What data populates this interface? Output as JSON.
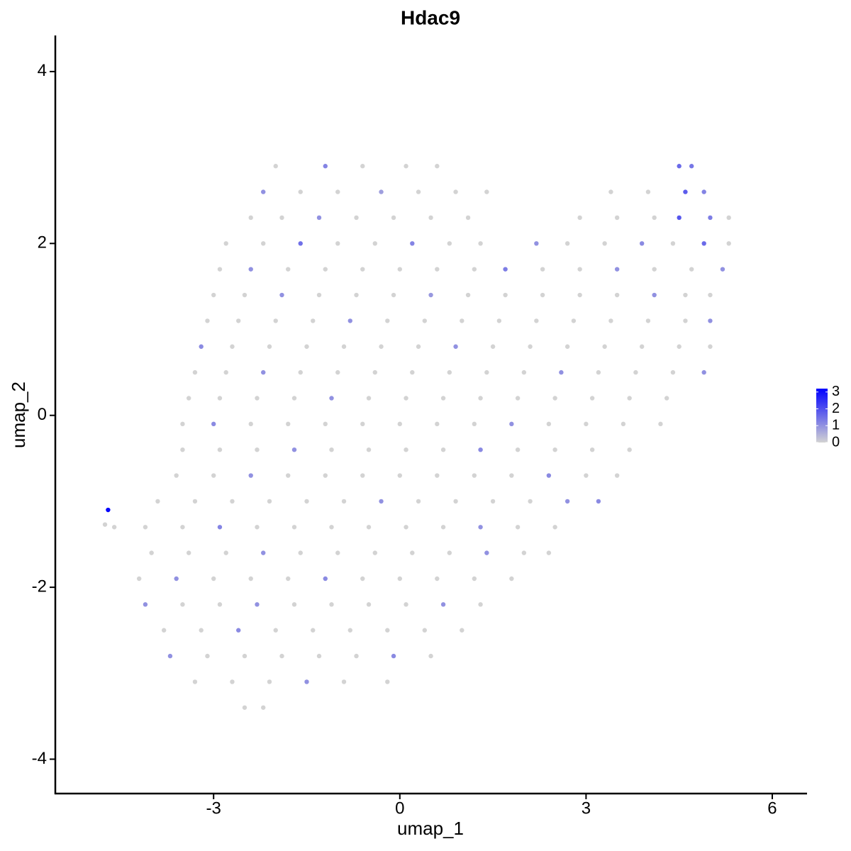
{
  "chart_data": {
    "type": "scatter",
    "title": "Hdac9",
    "x_label": "umap_1",
    "y_label": "umap_2",
    "xlim": [
      -5.55,
      6.56
    ],
    "xticks": [
      -3,
      0,
      3,
      6
    ],
    "ylim": [
      -4.4,
      4.42
    ],
    "yticks": [
      -4,
      -2,
      0,
      2,
      4
    ],
    "grid": false,
    "color_scale": {
      "low": "#d3d3d3",
      "high": "#0000ff",
      "lim": [
        0,
        3.2
      ],
      "ticks": [
        0,
        1,
        2,
        3
      ]
    },
    "x": [
      -2.0,
      -1.2,
      -0.6,
      0.1,
      0.6,
      4.5,
      4.7,
      -2.2,
      -1.6,
      -1.0,
      -0.3,
      0.3,
      0.9,
      1.4,
      3.4,
      4.0,
      4.6,
      4.9,
      -2.4,
      -1.9,
      -1.3,
      -0.7,
      -0.1,
      0.5,
      1.1,
      2.9,
      3.5,
      4.1,
      4.5,
      5.0,
      5.3,
      -2.8,
      -2.2,
      -1.6,
      -1.0,
      -0.4,
      0.2,
      0.8,
      1.3,
      2.2,
      2.7,
      3.3,
      3.9,
      4.4,
      4.9,
      5.3,
      -2.9,
      -2.4,
      -1.8,
      -1.2,
      -0.6,
      0.0,
      0.6,
      1.2,
      1.7,
      2.3,
      2.9,
      3.5,
      4.1,
      4.7,
      5.2,
      -3.0,
      -2.5,
      -1.9,
      -1.3,
      -0.7,
      -0.1,
      0.5,
      1.1,
      1.7,
      2.3,
      2.9,
      3.5,
      4.1,
      4.6,
      5.0,
      -3.1,
      -2.6,
      -2.0,
      -1.4,
      -0.8,
      -0.2,
      0.4,
      1.0,
      1.6,
      2.2,
      2.8,
      3.4,
      4.0,
      4.6,
      5.0,
      -3.2,
      -2.7,
      -2.1,
      -1.5,
      -0.9,
      -0.3,
      0.3,
      0.9,
      1.5,
      2.1,
      2.7,
      3.3,
      3.9,
      4.5,
      5.0,
      -3.3,
      -2.8,
      -2.2,
      -1.6,
      -1.0,
      -0.4,
      0.2,
      0.8,
      1.4,
      2.0,
      2.6,
      3.2,
      3.8,
      4.4,
      4.9,
      -3.4,
      -2.9,
      -2.3,
      -1.7,
      -1.1,
      -0.5,
      0.1,
      0.7,
      1.3,
      1.9,
      2.5,
      3.1,
      3.7,
      4.3,
      -3.5,
      -3.0,
      -2.4,
      -1.8,
      -1.2,
      -0.6,
      0.0,
      0.6,
      1.2,
      1.8,
      2.4,
      3.0,
      3.6,
      4.2,
      -3.5,
      -2.9,
      -2.3,
      -1.7,
      -1.1,
      -0.5,
      0.1,
      0.7,
      1.3,
      1.9,
      2.5,
      3.1,
      3.7,
      -3.6,
      -3.0,
      -2.4,
      -1.8,
      -1.2,
      -0.6,
      0.0,
      0.6,
      1.2,
      1.8,
      2.4,
      3.0,
      3.5,
      -3.9,
      -3.3,
      -2.7,
      -2.1,
      -1.5,
      -0.9,
      -0.3,
      0.3,
      0.9,
      1.5,
      2.1,
      2.7,
      3.2,
      -4.1,
      -3.5,
      -2.9,
      -2.3,
      -1.7,
      -1.1,
      -0.5,
      0.1,
      0.7,
      1.3,
      1.9,
      2.5,
      -4.0,
      -3.4,
      -2.8,
      -2.2,
      -1.6,
      -1.0,
      -0.4,
      0.2,
      0.8,
      1.4,
      2.0,
      2.4,
      -4.2,
      -3.6,
      -3.0,
      -2.4,
      -1.8,
      -1.2,
      -0.6,
      0.0,
      0.6,
      1.2,
      1.8,
      -4.1,
      -3.5,
      -2.9,
      -2.3,
      -1.7,
      -1.1,
      -0.5,
      0.1,
      0.7,
      1.3,
      -3.8,
      -3.2,
      -2.6,
      -2.0,
      -1.4,
      -0.8,
      -0.2,
      0.4,
      1.0,
      -3.7,
      -3.1,
      -2.5,
      -1.9,
      -1.3,
      -0.7,
      -0.1,
      0.5,
      -3.3,
      -2.7,
      -2.1,
      -1.5,
      -0.9,
      -0.2,
      -2.5,
      -2.2,
      -4.7,
      -4.75,
      -4.6
    ],
    "y": [
      2.9,
      2.9,
      2.9,
      2.9,
      2.9,
      2.9,
      2.9,
      2.6,
      2.6,
      2.6,
      2.6,
      2.6,
      2.6,
      2.6,
      2.6,
      2.6,
      2.6,
      2.6,
      2.3,
      2.3,
      2.3,
      2.3,
      2.3,
      2.3,
      2.3,
      2.3,
      2.3,
      2.3,
      2.3,
      2.3,
      2.3,
      2.0,
      2.0,
      2.0,
      2.0,
      2.0,
      2.0,
      2.0,
      2.0,
      2.0,
      2.0,
      2.0,
      2.0,
      2.0,
      2.0,
      2.0,
      1.7,
      1.7,
      1.7,
      1.7,
      1.7,
      1.7,
      1.7,
      1.7,
      1.7,
      1.7,
      1.7,
      1.7,
      1.7,
      1.7,
      1.7,
      1.4,
      1.4,
      1.4,
      1.4,
      1.4,
      1.4,
      1.4,
      1.4,
      1.4,
      1.4,
      1.4,
      1.4,
      1.4,
      1.4,
      1.4,
      1.1,
      1.1,
      1.1,
      1.1,
      1.1,
      1.1,
      1.1,
      1.1,
      1.1,
      1.1,
      1.1,
      1.1,
      1.1,
      1.1,
      1.1,
      0.8,
      0.8,
      0.8,
      0.8,
      0.8,
      0.8,
      0.8,
      0.8,
      0.8,
      0.8,
      0.8,
      0.8,
      0.8,
      0.8,
      0.8,
      0.5,
      0.5,
      0.5,
      0.5,
      0.5,
      0.5,
      0.5,
      0.5,
      0.5,
      0.5,
      0.5,
      0.5,
      0.5,
      0.5,
      0.5,
      0.2,
      0.2,
      0.2,
      0.2,
      0.2,
      0.2,
      0.2,
      0.2,
      0.2,
      0.2,
      0.2,
      0.2,
      0.2,
      0.2,
      -0.1,
      -0.1,
      -0.1,
      -0.1,
      -0.1,
      -0.1,
      -0.1,
      -0.1,
      -0.1,
      -0.1,
      -0.1,
      -0.1,
      -0.1,
      -0.1,
      -0.4,
      -0.4,
      -0.4,
      -0.4,
      -0.4,
      -0.4,
      -0.4,
      -0.4,
      -0.4,
      -0.4,
      -0.4,
      -0.4,
      -0.4,
      -0.7,
      -0.7,
      -0.7,
      -0.7,
      -0.7,
      -0.7,
      -0.7,
      -0.7,
      -0.7,
      -0.7,
      -0.7,
      -0.7,
      -0.7,
      -1.0,
      -1.0,
      -1.0,
      -1.0,
      -1.0,
      -1.0,
      -1.0,
      -1.0,
      -1.0,
      -1.0,
      -1.0,
      -1.0,
      -1.0,
      -1.3,
      -1.3,
      -1.3,
      -1.3,
      -1.3,
      -1.3,
      -1.3,
      -1.3,
      -1.3,
      -1.3,
      -1.3,
      -1.3,
      -1.6,
      -1.6,
      -1.6,
      -1.6,
      -1.6,
      -1.6,
      -1.6,
      -1.6,
      -1.6,
      -1.6,
      -1.6,
      -1.6,
      -1.9,
      -1.9,
      -1.9,
      -1.9,
      -1.9,
      -1.9,
      -1.9,
      -1.9,
      -1.9,
      -1.9,
      -1.9,
      -2.2,
      -2.2,
      -2.2,
      -2.2,
      -2.2,
      -2.2,
      -2.2,
      -2.2,
      -2.2,
      -2.2,
      -2.5,
      -2.5,
      -2.5,
      -2.5,
      -2.5,
      -2.5,
      -2.5,
      -2.5,
      -2.5,
      -2.8,
      -2.8,
      -2.8,
      -2.8,
      -2.8,
      -2.8,
      -2.8,
      -2.8,
      -3.1,
      -3.1,
      -3.1,
      -3.1,
      -3.1,
      -3.1,
      -3.4,
      -3.4,
      -1.1,
      -1.27,
      -1.3
    ],
    "values": [
      0,
      1.2,
      0,
      0,
      0,
      1.6,
      1.4,
      1.0,
      0,
      0,
      0.8,
      0,
      0,
      0,
      0,
      0,
      1.8,
      1.2,
      0,
      0,
      1.0,
      0,
      0,
      0,
      0,
      0,
      0,
      0,
      1.9,
      1.3,
      0,
      0,
      0,
      1.5,
      0,
      0,
      1.2,
      0,
      0,
      1.0,
      0,
      0,
      1.1,
      0,
      1.6,
      0,
      0,
      1.0,
      0,
      0,
      0,
      0,
      0,
      0,
      1.3,
      0,
      0,
      1.0,
      0,
      0,
      1.0,
      0,
      0,
      1.0,
      0,
      0,
      0,
      0.9,
      0,
      0,
      0,
      0,
      0,
      1.0,
      0,
      0,
      0,
      0,
      0,
      0,
      1.0,
      0,
      0,
      0,
      0,
      0,
      0,
      0,
      0,
      0,
      1.0,
      1.1,
      0,
      0,
      0,
      0,
      0,
      0,
      1.0,
      0,
      0,
      0,
      0,
      0,
      0,
      0,
      0,
      0,
      1.0,
      0,
      0,
      0,
      0,
      0,
      0,
      0,
      1.0,
      0,
      0,
      0,
      1.0,
      0,
      0,
      0,
      0,
      1.0,
      0,
      0,
      0,
      0,
      0,
      0,
      0,
      0,
      0,
      0,
      1.1,
      0,
      0,
      0,
      0,
      0,
      0,
      0,
      1.0,
      0,
      0,
      0,
      0,
      0,
      0,
      0,
      1.0,
      0,
      0,
      0,
      0,
      1.1,
      0,
      0,
      0,
      0,
      0,
      0,
      1.0,
      0,
      0,
      0,
      0,
      0,
      0,
      0,
      1.1,
      0,
      0,
      0,
      0,
      0,
      0,
      0,
      0,
      1.0,
      0,
      0,
      0,
      0,
      1.0,
      1.1,
      0,
      0,
      1.2,
      0,
      0,
      0,
      0,
      0,
      0,
      1.0,
      0,
      0,
      0,
      0,
      0,
      1.0,
      0,
      0,
      0,
      0,
      0,
      1.0,
      0,
      0,
      0,
      1.0,
      0,
      0,
      0,
      1.1,
      0,
      0,
      0,
      0,
      0,
      1.0,
      0,
      0,
      1.0,
      0,
      0,
      0,
      0,
      1.0,
      0,
      0,
      0,
      1.1,
      0,
      0,
      0,
      0,
      0,
      0,
      1.0,
      0,
      0,
      0,
      0,
      0,
      1.1,
      0,
      0,
      0,
      0,
      1.0,
      0,
      0,
      0,
      0,
      3.1,
      0,
      0
    ]
  }
}
